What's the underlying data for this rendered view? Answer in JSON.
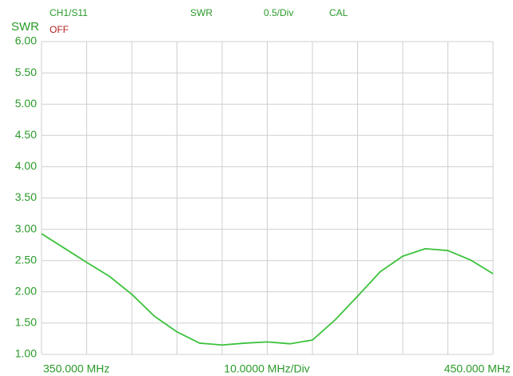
{
  "chart_data": {
    "type": "line",
    "header": [
      "CH1/S11",
      "SWR",
      "0.5/Div",
      "CAL"
    ],
    "status": "OFF",
    "ylabel": "SWR",
    "x_div_label": "10.0000 MHz/Div",
    "x_divisions": 10,
    "xlim": [
      350,
      450
    ],
    "xticks": [
      {
        "value": 350,
        "label": "350.000 MHz"
      },
      {
        "value": 450,
        "label": "450.000 MHz"
      }
    ],
    "ylim": [
      1,
      6
    ],
    "yticks": [
      {
        "value": 1,
        "label": "1.00"
      },
      {
        "value": 1.5,
        "label": "1.50"
      },
      {
        "value": 2,
        "label": "2.00"
      },
      {
        "value": 2.5,
        "label": "2.50"
      },
      {
        "value": 3,
        "label": "3.00"
      },
      {
        "value": 3.5,
        "label": "3.50"
      },
      {
        "value": 4,
        "label": "4.00"
      },
      {
        "value": 4.5,
        "label": "4.50"
      },
      {
        "value": 5,
        "label": "5.00"
      },
      {
        "value": 5.5,
        "label": "5.50"
      },
      {
        "value": 6,
        "label": "6.00"
      }
    ],
    "grid": true,
    "x": [
      350,
      355,
      360,
      365,
      370,
      375,
      380,
      385,
      390,
      395,
      400,
      405,
      410,
      415,
      420,
      425,
      430,
      435,
      440,
      445,
      450
    ],
    "series": [
      {
        "name": "SWR",
        "color": "#3cc23c",
        "values": [
          2.93,
          2.7,
          2.47,
          2.25,
          1.96,
          1.61,
          1.36,
          1.18,
          1.15,
          1.18,
          1.2,
          1.17,
          1.23,
          1.55,
          1.93,
          2.32,
          2.57,
          2.69,
          2.66,
          2.51,
          2.29
        ]
      }
    ]
  }
}
